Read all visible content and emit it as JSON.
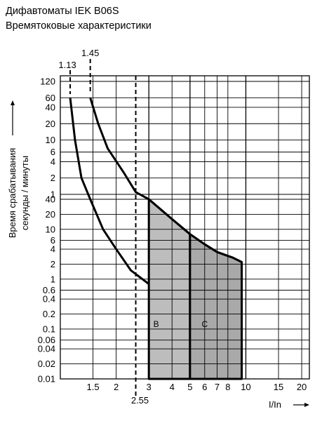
{
  "header": {
    "title": "Дифавтоматы IEK B06S",
    "subtitle": "Времятоковые характеристики"
  },
  "chart_data": {
    "type": "area",
    "x_scale": "log",
    "xlim": [
      1.0,
      22
    ],
    "x_ticks": [
      1.5,
      2,
      3,
      4,
      5,
      6,
      7,
      8,
      10,
      15,
      20
    ],
    "x_tick_labels": [
      "1.5",
      "2",
      "3",
      "4",
      "5",
      "6",
      "7",
      "8",
      "10",
      "15",
      "20"
    ],
    "xlabel": "I/In",
    "ylabel": "Время срабатывания секунды / минуты",
    "ylabel_lines": [
      "Время срабатывания",
      "секунды / минуты"
    ],
    "y_scale": "log",
    "y_unit_segments": [
      {
        "unit": "минуты",
        "range": [
          1,
          120
        ],
        "ticks": [
          1,
          2,
          4,
          6,
          10,
          20,
          40,
          60,
          120
        ],
        "tick_labels": [
          "1",
          "2",
          "4",
          "6",
          "10",
          "20",
          "40",
          "60",
          "120"
        ]
      },
      {
        "unit": "секунды",
        "range": [
          0.01,
          40
        ],
        "ticks": [
          0.01,
          0.02,
          0.04,
          0.06,
          0.1,
          0.2,
          0.4,
          0.6,
          1,
          2,
          4,
          6,
          10,
          20,
          40
        ],
        "tick_labels": [
          "0.01",
          "0.02",
          "0.04",
          "0.06",
          "0.1",
          "0.2",
          "0.4",
          "0.6",
          "1",
          "2",
          "4",
          "6",
          "10",
          "20",
          "40"
        ]
      }
    ],
    "reference_lines": [
      {
        "x": 1.13,
        "label": "1.13"
      },
      {
        "x": 1.45,
        "label": "1.45"
      },
      {
        "x": 2.55,
        "label": "2.55"
      }
    ],
    "series": [
      {
        "points": [
          {
            "x": 1.13,
            "y": 60,
            "unit": "минуты"
          },
          {
            "x": 1.2,
            "y": 10,
            "unit": "минуты"
          },
          {
            "x": 1.3,
            "y": 2,
            "unit": "минуты"
          },
          {
            "x": 1.45,
            "y": 40,
            "unit": "секунды"
          },
          {
            "x": 1.7,
            "y": 10,
            "unit": "секунды"
          },
          {
            "x": 2.0,
            "y": 4,
            "unit": "секунды"
          },
          {
            "x": 2.4,
            "y": 1.5,
            "unit": "секунды"
          },
          {
            "x": 3.0,
            "y": 0.8,
            "unit": "секунды"
          }
        ]
      },
      {
        "points": [
          {
            "x": 1.45,
            "y": 60,
            "unit": "минуты"
          },
          {
            "x": 1.6,
            "y": 20,
            "unit": "минуты"
          },
          {
            "x": 1.8,
            "y": 7,
            "unit": "минуты"
          },
          {
            "x": 2.2,
            "y": 2.5,
            "unit": "минуты"
          },
          {
            "x": 2.55,
            "y": 1.1,
            "unit": "минуты"
          },
          {
            "x": 3.0,
            "y": 40,
            "unit": "секунды"
          },
          {
            "x": 4.0,
            "y": 16,
            "unit": "секунды"
          },
          {
            "x": 5.0,
            "y": 8,
            "unit": "секунды"
          },
          {
            "x": 6.0,
            "y": 5,
            "unit": "секунды"
          },
          {
            "x": 7.0,
            "y": 3.5,
            "unit": "секунды"
          },
          {
            "x": 8.5,
            "y": 2.7,
            "unit": "секунды"
          },
          {
            "x": 9.5,
            "y": 2.2,
            "unit": "секунды"
          }
        ]
      }
    ],
    "zones": [
      {
        "label": "B",
        "x_range": [
          3,
          5
        ],
        "color": "#bdbdbd",
        "lower_y": 0.01,
        "upper": [
          {
            "x": 3,
            "y": 40
          },
          {
            "x": 4,
            "y": 16
          },
          {
            "x": 5,
            "y": 8
          }
        ]
      },
      {
        "label": "C",
        "x_range": [
          5,
          10
        ],
        "color": "#a9a9a9",
        "lower_y": 0.01,
        "upper": [
          {
            "x": 5,
            "y": 8
          },
          {
            "x": 6,
            "y": 5
          },
          {
            "x": 7,
            "y": 3.5
          },
          {
            "x": 8.5,
            "y": 2.7
          },
          {
            "x": 9.5,
            "y": 2.2
          },
          {
            "x": 9.5,
            "y": 0.01
          }
        ]
      }
    ],
    "grid": true,
    "legend": "none",
    "colors": {
      "curve": "#000000",
      "zone_b": "#bdbdbd",
      "zone_c": "#a9a9a9"
    }
  }
}
